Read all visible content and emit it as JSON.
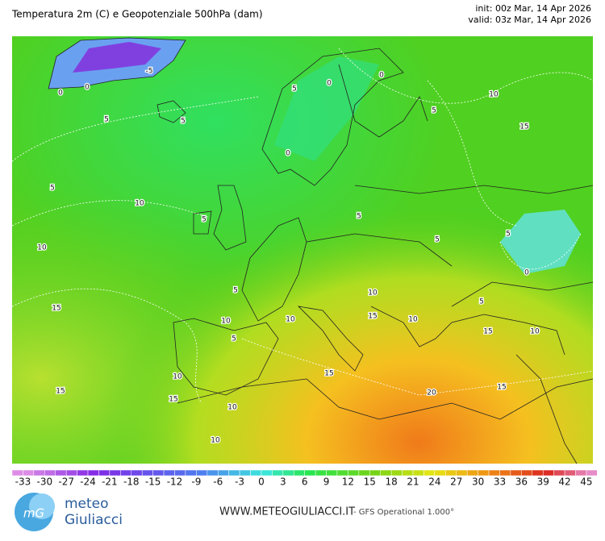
{
  "header": {
    "title": "Temperatura 2m (C) e Geopotenziale 500hPa (dam)",
    "init": "init: 00z Mar, 14 Apr 2026",
    "valid": "valid: 03z Mar, 14 Apr 2026"
  },
  "map": {
    "contour_labels": [
      -5,
      0,
      0,
      5,
      5,
      5,
      10,
      10,
      15,
      15,
      15,
      10,
      10,
      5,
      5,
      5,
      0,
      5,
      0,
      0,
      10,
      15,
      5,
      5,
      5,
      5,
      0,
      5,
      10,
      15,
      10,
      15,
      10,
      15,
      20,
      15,
      10,
      10,
      10
    ]
  },
  "colorbar": {
    "ticks": [
      -33,
      -30,
      -27,
      -24,
      -21,
      -18,
      -15,
      -12,
      -9,
      -6,
      -3,
      0,
      3,
      6,
      9,
      12,
      15,
      18,
      21,
      24,
      27,
      30,
      33,
      36,
      39,
      42,
      45
    ]
  },
  "footer": {
    "brand_top": "meteo",
    "brand_bottom": "Giuliacci",
    "logo": "mG",
    "website": "WWW.METEOGIULIACCI.IT",
    "model": "- GFS Operational 1.000°"
  }
}
